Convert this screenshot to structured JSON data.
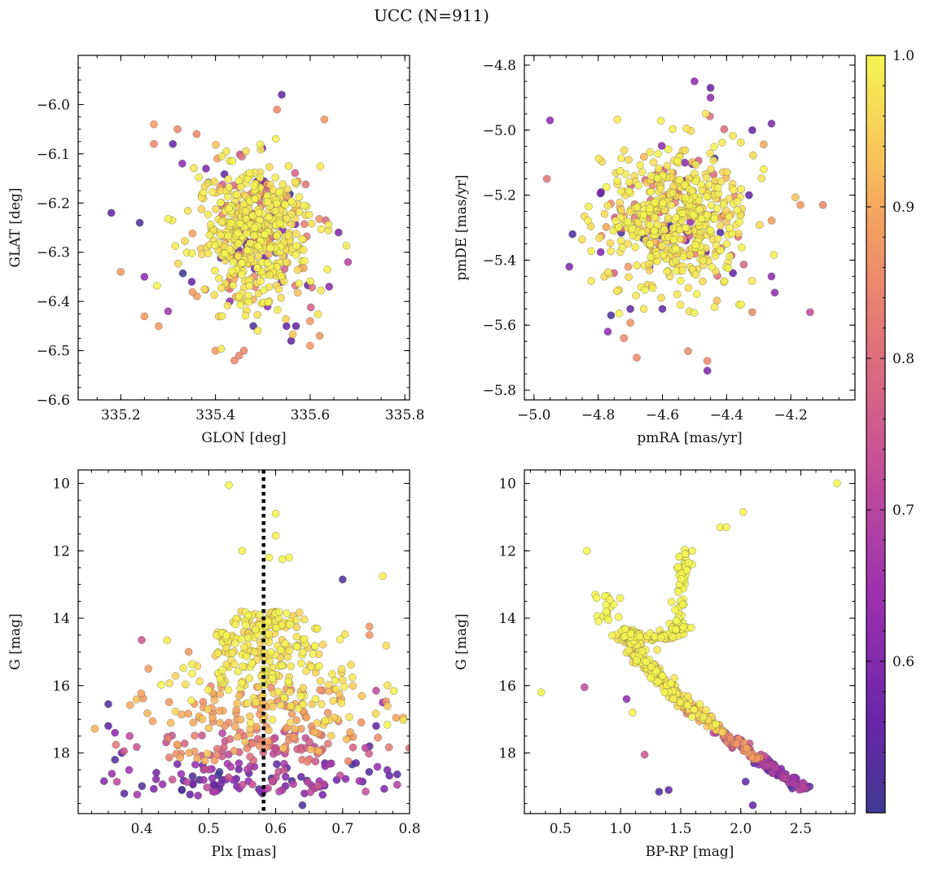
{
  "figure": {
    "title": "UCC (N=911)",
    "colorbar": {
      "label": "",
      "range": [
        0.5,
        1.0
      ],
      "ticks": [
        0.6,
        0.7,
        0.8,
        0.9,
        1.0
      ],
      "tick_labels": [
        "0.6",
        "0.7",
        "0.8",
        "0.9",
        "1.0"
      ],
      "colormap": "plasma"
    }
  },
  "chart_data": [
    {
      "type": "scatter",
      "name": "glon-glat",
      "xlabel": "GLON [deg]",
      "ylabel": "GLAT [deg]",
      "xlim": [
        335.11,
        335.81
      ],
      "ylim": [
        -6.6,
        -5.9
      ],
      "xticks": [
        335.2,
        335.4,
        335.6,
        335.8
      ],
      "xtick_labels": [
        "335.2",
        "335.4",
        "335.6",
        "335.8"
      ],
      "yticks": [
        -6.6,
        -6.5,
        -6.4,
        -6.3,
        -6.2,
        -6.1,
        -6.0
      ],
      "ytick_labels": [
        "−6.6",
        "−6.5",
        "−6.4",
        "−6.3",
        "−6.2",
        "−6.1",
        "−6.0"
      ],
      "cluster": {
        "x": 335.48,
        "y": -6.26,
        "sx": 0.06,
        "sy": 0.07,
        "n": 560
      },
      "points": [
        [
          335.18,
          -6.22,
          0.55
        ],
        [
          335.24,
          -6.24,
          0.52
        ],
        [
          335.2,
          -6.34,
          0.88
        ],
        [
          335.25,
          -6.35,
          0.62
        ],
        [
          335.25,
          -6.43,
          0.88
        ],
        [
          335.28,
          -6.45,
          0.88
        ],
        [
          335.3,
          -6.42,
          0.65
        ],
        [
          335.32,
          -6.05,
          0.85
        ],
        [
          335.27,
          -6.08,
          0.85
        ],
        [
          335.35,
          -6.36,
          0.55
        ],
        [
          335.4,
          -6.5,
          0.88
        ],
        [
          335.44,
          -6.52,
          0.85
        ],
        [
          335.45,
          -6.51,
          0.85
        ],
        [
          335.46,
          -6.5,
          0.85
        ],
        [
          335.48,
          -6.45,
          0.52
        ],
        [
          335.54,
          -5.98,
          0.55
        ],
        [
          335.53,
          -6.01,
          0.85
        ],
        [
          335.55,
          -6.45,
          0.55
        ],
        [
          335.56,
          -6.48,
          0.55
        ],
        [
          335.57,
          -6.45,
          0.55
        ],
        [
          335.6,
          -6.44,
          0.88
        ],
        [
          335.6,
          -6.49,
          0.88
        ],
        [
          335.62,
          -6.47,
          0.88
        ],
        [
          335.63,
          -6.03,
          0.88
        ],
        [
          335.68,
          -6.32,
          0.7
        ],
        [
          335.66,
          -6.26,
          0.6
        ],
        [
          335.64,
          -6.37,
          0.62
        ],
        [
          335.33,
          -6.12,
          0.62
        ],
        [
          335.38,
          -6.13,
          0.6
        ],
        [
          335.43,
          -6.4,
          0.62
        ],
        [
          335.51,
          -6.41,
          0.62
        ],
        [
          335.54,
          -6.36,
          0.55
        ],
        [
          335.27,
          -6.04,
          0.88
        ],
        [
          335.31,
          -6.08,
          0.55
        ],
        [
          335.36,
          -6.06,
          0.85
        ]
      ]
    },
    {
      "type": "scatter",
      "name": "pmra-pmde",
      "xlabel": "pmRA [mas/yr]",
      "ylabel": "pmDE [mas/yr]",
      "xlim": [
        -5.03,
        -4.0
      ],
      "ylim": [
        -5.83,
        -4.77
      ],
      "xticks": [
        -5.0,
        -4.8,
        -4.6,
        -4.4,
        -4.2
      ],
      "xtick_labels": [
        "−5.0",
        "−4.8",
        "−4.6",
        "−4.4",
        "−4.2"
      ],
      "yticks": [
        -5.8,
        -5.6,
        -5.4,
        -5.2,
        -5.0,
        -4.8
      ],
      "ytick_labels": [
        "−5.8",
        "−5.6",
        "−5.4",
        "−5.2",
        "−5.0",
        "−4.8"
      ],
      "cluster": {
        "x": -4.56,
        "y": -5.27,
        "sx": 0.11,
        "sy": 0.11,
        "n": 560
      },
      "points": [
        [
          -4.95,
          -4.97,
          0.62
        ],
        [
          -4.96,
          -5.15,
          0.82
        ],
        [
          -4.88,
          -5.32,
          0.52
        ],
        [
          -4.89,
          -5.42,
          0.6
        ],
        [
          -4.5,
          -4.85,
          0.62
        ],
        [
          -4.45,
          -4.87,
          0.55
        ],
        [
          -4.45,
          -4.9,
          0.62
        ],
        [
          -4.32,
          -5.0,
          0.55
        ],
        [
          -4.26,
          -4.98,
          0.6
        ],
        [
          -4.17,
          -5.23,
          0.88
        ],
        [
          -4.1,
          -5.23,
          0.85
        ],
        [
          -4.14,
          -5.56,
          0.72
        ],
        [
          -4.46,
          -5.74,
          0.6
        ],
        [
          -4.46,
          -5.71,
          0.85
        ],
        [
          -4.52,
          -5.68,
          0.85
        ],
        [
          -4.68,
          -5.7,
          0.85
        ],
        [
          -4.72,
          -5.64,
          0.85
        ],
        [
          -4.7,
          -5.55,
          0.55
        ],
        [
          -4.6,
          -5.55,
          0.55
        ],
        [
          -4.76,
          -5.57,
          0.52
        ],
        [
          -4.77,
          -5.62,
          0.62
        ],
        [
          -4.32,
          -5.56,
          0.85
        ],
        [
          -4.26,
          -5.45,
          0.62
        ],
        [
          -4.25,
          -5.5,
          0.62
        ],
        [
          -4.33,
          -5.2,
          0.55
        ],
        [
          -4.38,
          -5.44,
          0.55
        ],
        [
          -4.53,
          -5.1,
          0.62
        ],
        [
          -4.64,
          -5.42,
          0.55
        ]
      ]
    },
    {
      "type": "scatter",
      "name": "plx-g",
      "xlabel": "Plx [mas]",
      "ylabel": "G [mag]",
      "xlim": [
        0.305,
        0.8
      ],
      "ylim": [
        19.8,
        9.6
      ],
      "y_inverted": true,
      "xticks": [
        0.4,
        0.5,
        0.6,
        0.7,
        0.8
      ],
      "xtick_labels": [
        "0.4",
        "0.5",
        "0.6",
        "0.7",
        "0.8"
      ],
      "yticks": [
        10,
        12,
        14,
        16,
        18
      ],
      "ytick_labels": [
        "10",
        "12",
        "14",
        "16",
        "18"
      ],
      "vline": {
        "x": 0.582,
        "style": "dotted"
      },
      "cluster": {
        "x": 0.585,
        "sx": 0.045,
        "n": 600
      },
      "points": [
        [
          0.53,
          10.05,
          1.0
        ],
        [
          0.6,
          10.9,
          1.0
        ],
        [
          0.76,
          12.75,
          1.0
        ],
        [
          0.55,
          12.0,
          1.0
        ],
        [
          0.59,
          12.2,
          1.0
        ],
        [
          0.61,
          12.25,
          1.0
        ],
        [
          0.62,
          12.2,
          1.0
        ],
        [
          0.6,
          11.55,
          1.0
        ],
        [
          0.7,
          12.85,
          0.52
        ],
        [
          0.74,
          14.25,
          0.88
        ],
        [
          0.74,
          14.5,
          0.88
        ],
        [
          0.35,
          16.55,
          0.52
        ],
        [
          0.35,
          17.2,
          0.55
        ],
        [
          0.36,
          17.4,
          0.62
        ],
        [
          0.36,
          18.2,
          0.52
        ],
        [
          0.37,
          18.0,
          0.55
        ],
        [
          0.4,
          14.65,
          0.75
        ],
        [
          0.41,
          15.5,
          0.88
        ],
        [
          0.47,
          15.0,
          0.88
        ],
        [
          0.58,
          19.2,
          0.55
        ],
        [
          0.64,
          19.55,
          0.52
        ],
        [
          0.56,
          18.6,
          0.55
        ],
        [
          0.46,
          19.1,
          0.52
        ],
        [
          0.52,
          18.8,
          0.55
        ],
        [
          0.75,
          16.15,
          0.72
        ],
        [
          0.76,
          16.5,
          0.65
        ],
        [
          0.75,
          17.2,
          0.55
        ],
        [
          0.74,
          17.8,
          0.55
        ],
        [
          0.72,
          18.3,
          0.55
        ],
        [
          0.73,
          18.85,
          0.55
        ]
      ]
    },
    {
      "type": "scatter",
      "name": "bprp-g",
      "xlabel": "BP-RP [mag]",
      "ylabel": "G [mag]",
      "xlim": [
        0.2,
        2.95
      ],
      "ylim": [
        19.8,
        9.6
      ],
      "y_inverted": true,
      "xticks": [
        0.5,
        1.0,
        1.5,
        2.0,
        2.5
      ],
      "xtick_labels": [
        "0.5",
        "1.0",
        "1.5",
        "2.0",
        "2.5"
      ],
      "yticks": [
        10,
        12,
        14,
        16,
        18
      ],
      "ytick_labels": [
        "10",
        "12",
        "14",
        "16",
        "18"
      ],
      "points": [
        [
          2.8,
          10.0,
          1.0
        ],
        [
          2.02,
          10.85,
          1.0
        ],
        [
          1.83,
          11.3,
          1.0
        ],
        [
          1.88,
          11.3,
          1.0
        ],
        [
          0.72,
          12.0,
          1.0
        ],
        [
          0.34,
          16.2,
          1.0
        ],
        [
          0.7,
          16.05,
          0.72
        ],
        [
          1.32,
          19.15,
          0.52
        ],
        [
          1.4,
          19.1,
          0.55
        ],
        [
          2.1,
          19.55,
          0.55
        ],
        [
          2.04,
          18.85,
          0.55
        ],
        [
          1.05,
          16.4,
          0.62
        ],
        [
          1.1,
          16.8,
          1.0
        ],
        [
          1.2,
          18.05,
          0.75
        ],
        [
          1.66,
          16.55,
          1.0
        ],
        [
          0.79,
          13.3,
          1.0
        ],
        [
          0.8,
          13.4,
          1.0
        ],
        [
          0.88,
          13.6,
          1.0
        ],
        [
          0.88,
          13.8,
          1.0
        ],
        [
          0.9,
          14.05,
          1.0
        ],
        [
          0.87,
          13.35,
          1.0
        ],
        [
          0.91,
          13.45,
          1.0
        ]
      ]
    }
  ]
}
